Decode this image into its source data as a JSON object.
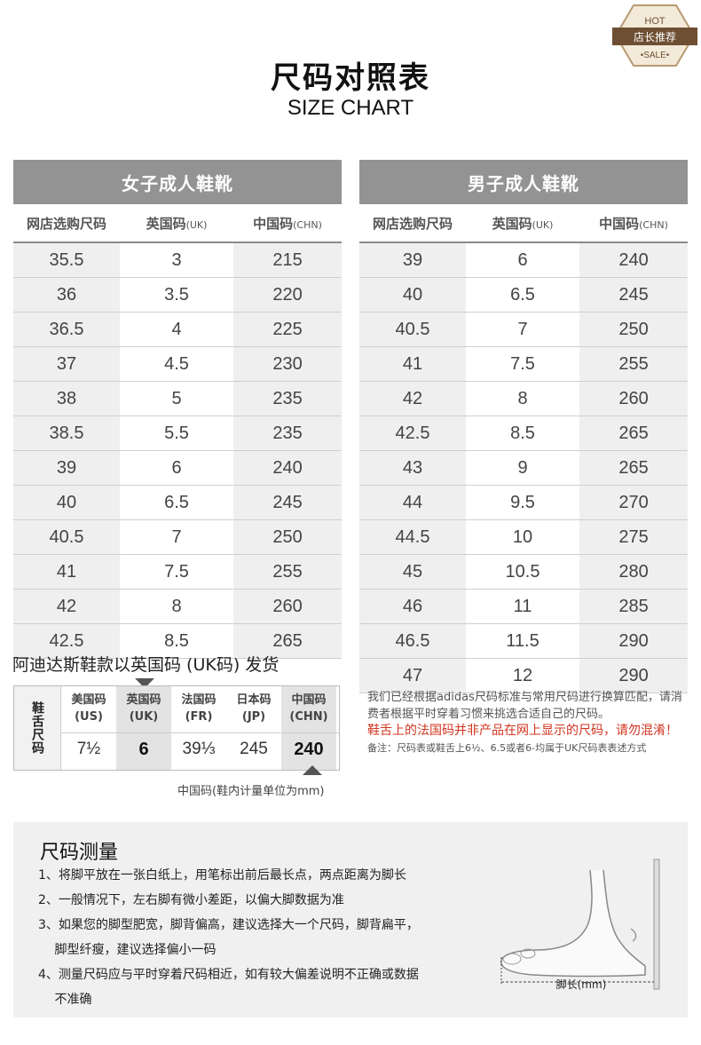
{
  "badge": {
    "top": "HOT",
    "middle": "店长推荐",
    "bottom": "•SALE•"
  },
  "title": "尺码对照表",
  "subtitle": "SIZE CHART",
  "women": {
    "heading": "女子成人鞋靴",
    "cols": {
      "store": "网店选购尺码",
      "uk": "英国码",
      "uk_unit": "(UK)",
      "chn": "中国码",
      "chn_unit": "(CHN)"
    },
    "rows": [
      [
        "35.5",
        "3",
        "215"
      ],
      [
        "36",
        "3.5",
        "220"
      ],
      [
        "36.5",
        "4",
        "225"
      ],
      [
        "37",
        "4.5",
        "230"
      ],
      [
        "38",
        "5",
        "235"
      ],
      [
        "38.5",
        "5.5",
        "235"
      ],
      [
        "39",
        "6",
        "240"
      ],
      [
        "40",
        "6.5",
        "245"
      ],
      [
        "40.5",
        "7",
        "250"
      ],
      [
        "41",
        "7.5",
        "255"
      ],
      [
        "42",
        "8",
        "260"
      ],
      [
        "42.5",
        "8.5",
        "265"
      ]
    ]
  },
  "men": {
    "heading": "男子成人鞋靴",
    "cols": {
      "store": "网店选购尺码",
      "uk": "英国码",
      "uk_unit": "(UK)",
      "chn": "中国码",
      "chn_unit": "(CHN)"
    },
    "rows": [
      [
        "39",
        "6",
        "240"
      ],
      [
        "40",
        "6.5",
        "245"
      ],
      [
        "40.5",
        "7",
        "250"
      ],
      [
        "41",
        "7.5",
        "255"
      ],
      [
        "42",
        "8",
        "260"
      ],
      [
        "42.5",
        "8.5",
        "265"
      ],
      [
        "43",
        "9",
        "265"
      ],
      [
        "44",
        "9.5",
        "270"
      ],
      [
        "44.5",
        "10",
        "275"
      ],
      [
        "45",
        "10.5",
        "280"
      ],
      [
        "46",
        "11",
        "285"
      ],
      [
        "46.5",
        "11.5",
        "290"
      ],
      [
        "47",
        "12",
        "290"
      ]
    ]
  },
  "shipping_note": "阿迪达斯鞋款以英国码 (UK码) 发货",
  "tongue": {
    "label": "鞋舌尺码",
    "columns": [
      {
        "name": "美国码",
        "unit": "(US)",
        "value": "7½"
      },
      {
        "name": "英国码",
        "unit": "(UK)",
        "value": "6"
      },
      {
        "name": "法国码",
        "unit": "(FR)",
        "value": "39⅓"
      },
      {
        "name": "日本码",
        "unit": "(JP)",
        "value": "245"
      },
      {
        "name": "中国码",
        "unit": "(CHN)",
        "value": "240"
      }
    ],
    "unit_note": "中国码(鞋内计量单位为mm)"
  },
  "notes": {
    "p1": "我们已经根据adidas尺码标准与常用尺码进行换算匹配，请消费者根据平时穿着习惯来挑选合适自己的尺码。",
    "warning": "鞋舌上的法国码并非产品在网上显示的尺码，请勿混淆！",
    "small": "备注：尺码表或鞋舌上6½、6.5或者6-均属于UK尺码表表述方式"
  },
  "measure": {
    "heading": "尺码测量",
    "items": [
      "1、将脚平放在一张白纸上，用笔标出前后最长点，两点距离为脚长",
      "2、一般情况下，左右脚有微小差距，以偏大脚数据为准",
      "3、如果您的脚型肥宽，脚背偏高，建议选择大一个尺码，脚背扁平，",
      "　 脚型纤瘦，建议选择偏小一码",
      "4、测量尺码应与平时穿着尺码相近，如有较大偏差说明不正确或数据",
      "　 不准确"
    ],
    "foot_label": "脚长(mm)"
  },
  "colors": {
    "header_gray": "#939393",
    "shade": "#efefef",
    "warning_red": "#d2341f",
    "badge_brown": "#7a5a3c"
  }
}
